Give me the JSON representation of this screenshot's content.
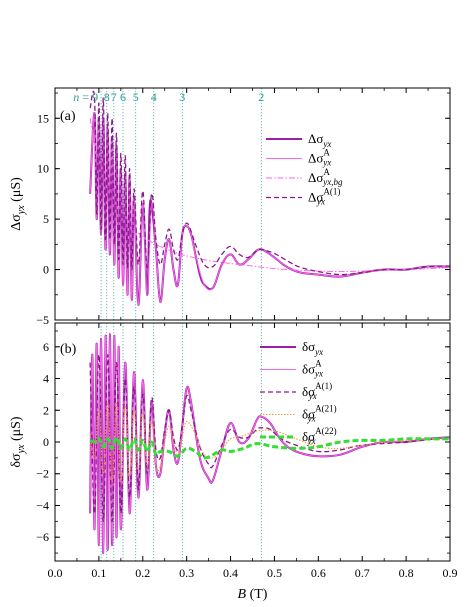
{
  "colors": {
    "main": "#9b1fa8",
    "pink": "#ff66ee",
    "dashed": "#8a1a8a",
    "orange": "#f29a3a",
    "green": "#33dd33",
    "guide": "#2f9a9a",
    "axis": "#000000"
  },
  "chart_data": [
    {
      "type": "line",
      "panel_label": "(a)",
      "ylabel": "Δσ_yx (μS)",
      "xlim": [
        0.0,
        0.9
      ],
      "ylim": [
        -5,
        18
      ],
      "yticks": [
        -5,
        0,
        5,
        10,
        15
      ],
      "landau_levels": {
        "labels": [
          "n = 9",
          "8",
          "7",
          "6",
          "5",
          "4",
          "3",
          "2"
        ],
        "B": [
          0.105,
          0.118,
          0.134,
          0.155,
          0.184,
          0.225,
          0.29,
          0.47
        ]
      },
      "legend": {
        "placement": "right-middle",
        "entries": [
          {
            "base": "Δσ",
            "sub": "yx",
            "sup": "",
            "style": "solid-thick",
            "color": "main"
          },
          {
            "base": "Δσ",
            "sub": "yx",
            "sup": "A",
            "style": "solid-thin",
            "color": "pink"
          },
          {
            "base": "Δσ",
            "sub": "yx,bg",
            "sup": "A",
            "style": "dash-dot",
            "color": "pink"
          },
          {
            "base": "Δσ",
            "sub": "yx",
            "sup": "A(1)",
            "style": "dashed",
            "color": "dashed"
          }
        ]
      },
      "series": [
        {
          "x": [
            0.08,
            0.09,
            0.095,
            0.1,
            0.105,
            0.11,
            0.115,
            0.12,
            0.125,
            0.13,
            0.135,
            0.14,
            0.145,
            0.15,
            0.155,
            0.16,
            0.165,
            0.17,
            0.175,
            0.18,
            0.19,
            0.2,
            0.21,
            0.215,
            0.22,
            0.23,
            0.24,
            0.25,
            0.26,
            0.27,
            0.28,
            0.29,
            0.3,
            0.31,
            0.32,
            0.33,
            0.34,
            0.36,
            0.38,
            0.4,
            0.42,
            0.44,
            0.46,
            0.47,
            0.48,
            0.5,
            0.52,
            0.54,
            0.56,
            0.6,
            0.65,
            0.7,
            0.75,
            0.8,
            0.85,
            0.9
          ],
          "y": [
            7.5,
            15.5,
            5.0,
            14.8,
            3.5,
            15.0,
            2.0,
            14.0,
            1.5,
            13.0,
            0.5,
            12.3,
            -0.8,
            10.0,
            -1.5,
            9.5,
            -2.5,
            9.0,
            -3.0,
            7.0,
            -3.5,
            6.5,
            -2.5,
            5.5,
            6.5,
            2.0,
            -3.2,
            1.0,
            3.0,
            0.0,
            -1.5,
            3.5,
            4.3,
            3.5,
            1.5,
            -0.5,
            -1.5,
            -1.8,
            0.5,
            1.5,
            0.5,
            1.0,
            1.9,
            2.0,
            1.8,
            1.2,
            0.5,
            0.0,
            -0.3,
            -0.5,
            -0.7,
            -0.3,
            0.0,
            0.0,
            0.3,
            0.3
          ]
        },
        {
          "x": [
            0.08,
            0.09,
            0.095,
            0.1,
            0.105,
            0.11,
            0.115,
            0.12,
            0.125,
            0.13,
            0.135,
            0.14,
            0.145,
            0.15,
            0.155,
            0.16,
            0.165,
            0.17,
            0.175,
            0.18,
            0.19,
            0.2,
            0.21,
            0.22,
            0.23,
            0.24,
            0.25,
            0.26,
            0.27,
            0.28,
            0.29,
            0.3,
            0.31,
            0.32,
            0.34,
            0.36,
            0.38,
            0.4,
            0.42,
            0.44,
            0.46,
            0.47,
            0.48,
            0.5,
            0.52,
            0.54,
            0.56,
            0.6,
            0.65,
            0.7,
            0.75,
            0.8,
            0.85,
            0.9
          ],
          "y": [
            7.5,
            15.5,
            5.0,
            14.8,
            3.5,
            15.0,
            2.0,
            14.0,
            1.5,
            13.0,
            0.5,
            12.3,
            -0.8,
            10.0,
            -1.5,
            9.5,
            -2.5,
            9.0,
            -3.0,
            7.0,
            -3.5,
            6.5,
            -2.5,
            6.5,
            2.0,
            -3.2,
            1.0,
            3.0,
            0.0,
            -1.5,
            3.5,
            4.3,
            3.5,
            1.5,
            -1.5,
            -1.8,
            0.5,
            1.5,
            0.5,
            1.0,
            1.9,
            2.0,
            1.8,
            1.2,
            0.5,
            0.0,
            -0.3,
            -0.5,
            -0.7,
            -0.3,
            0.0,
            0.0,
            0.3,
            0.3
          ]
        },
        {
          "x": [
            0.08,
            0.09,
            0.1,
            0.11,
            0.12,
            0.13,
            0.14,
            0.15,
            0.16,
            0.17,
            0.18,
            0.2,
            0.22,
            0.25,
            0.28,
            0.3,
            0.35,
            0.4,
            0.45,
            0.5,
            0.55,
            0.6,
            0.65,
            0.7,
            0.8,
            0.9
          ],
          "y": [
            15.0,
            12.5,
            11.0,
            9.5,
            8.5,
            7.5,
            6.5,
            5.8,
            5.2,
            4.6,
            4.0,
            3.3,
            2.7,
            2.1,
            1.6,
            1.35,
            0.9,
            0.6,
            0.35,
            0.1,
            -0.05,
            -0.15,
            -0.2,
            -0.15,
            0.0,
            0.2
          ]
        },
        {
          "x": [
            0.08,
            0.09,
            0.095,
            0.1,
            0.105,
            0.11,
            0.115,
            0.12,
            0.125,
            0.13,
            0.135,
            0.14,
            0.145,
            0.15,
            0.155,
            0.16,
            0.165,
            0.17,
            0.175,
            0.18,
            0.19,
            0.2,
            0.21,
            0.22,
            0.23,
            0.24,
            0.25,
            0.26,
            0.27,
            0.28,
            0.29,
            0.3,
            0.31,
            0.32,
            0.34,
            0.36,
            0.38,
            0.4,
            0.42,
            0.44,
            0.46,
            0.47,
            0.48,
            0.5,
            0.52,
            0.54,
            0.56,
            0.6,
            0.65,
            0.7,
            0.75,
            0.8,
            0.85,
            0.9
          ],
          "y": [
            16.0,
            17.0,
            5.5,
            16.5,
            4.0,
            17.0,
            3.0,
            15.5,
            3.0,
            15.0,
            2.5,
            13.5,
            1.0,
            11.5,
            0.5,
            11.3,
            0.2,
            10.0,
            0.0,
            8.0,
            0.5,
            7.8,
            0.2,
            7.5,
            3.0,
            0.5,
            2.5,
            4.0,
            2.0,
            1.0,
            3.5,
            4.6,
            3.8,
            2.5,
            0.5,
            0.3,
            1.5,
            2.3,
            1.5,
            1.2,
            1.9,
            2.0,
            1.9,
            1.6,
            1.1,
            0.6,
            0.2,
            -0.2,
            -0.5,
            -0.3,
            0.0,
            0.0,
            0.3,
            0.35
          ]
        }
      ]
    },
    {
      "type": "line",
      "panel_label": "(b)",
      "ylabel": "δσ_yx (μS)",
      "xlabel": "B (T)",
      "xlim": [
        0.0,
        0.9
      ],
      "ylim": [
        -7.5,
        7.5
      ],
      "yticks": [
        -6,
        -4,
        -2,
        0,
        2,
        4,
        6
      ],
      "xticks": [
        0.0,
        0.1,
        0.2,
        0.3,
        0.4,
        0.5,
        0.6,
        0.7,
        0.8,
        0.9
      ],
      "xtick_labels": [
        "0.0",
        "0.1",
        "0.2",
        "0.3",
        "0.4",
        "0.5",
        "0.6",
        "0.7",
        "0.8",
        "0.9"
      ],
      "legend": {
        "placement": "right-middle",
        "entries": [
          {
            "base": "δσ",
            "sub": "yx",
            "sup": "",
            "style": "solid-thick",
            "color": "main"
          },
          {
            "base": "δσ",
            "sub": "yx",
            "sup": "A",
            "style": "solid-thin",
            "color": "pink"
          },
          {
            "base": "δσ",
            "sub": "yx",
            "sup": "A(1)",
            "style": "dashed",
            "color": "dashed"
          },
          {
            "base": "δσ",
            "sub": "yx",
            "sup": "A(21)",
            "style": "dotted",
            "color": "orange"
          },
          {
            "base": "δσ",
            "sub": "yx",
            "sup": "A(22)",
            "style": "dashed-thick",
            "color": "green"
          }
        ]
      },
      "series": [
        {
          "x": [
            0.08,
            0.085,
            0.09,
            0.095,
            0.1,
            0.105,
            0.11,
            0.115,
            0.12,
            0.125,
            0.13,
            0.135,
            0.14,
            0.145,
            0.15,
            0.16,
            0.17,
            0.18,
            0.19,
            0.2,
            0.21,
            0.22,
            0.23,
            0.24,
            0.25,
            0.26,
            0.27,
            0.28,
            0.29,
            0.3,
            0.31,
            0.33,
            0.35,
            0.36,
            0.38,
            0.4,
            0.42,
            0.44,
            0.46,
            0.47,
            0.49,
            0.51,
            0.53,
            0.56,
            0.6,
            0.65,
            0.7,
            0.75,
            0.8,
            0.85,
            0.9
          ],
          "y": [
            -4.5,
            5.5,
            -5.5,
            6.2,
            -6.5,
            6.5,
            -7.0,
            6.7,
            -6.8,
            6.8,
            -6.5,
            6.7,
            -6.0,
            6.0,
            -5.5,
            5.0,
            -4.5,
            4.4,
            -3.5,
            3.9,
            -3.0,
            2.5,
            -1.5,
            -2.0,
            0.5,
            2.0,
            -0.5,
            -1.3,
            1.0,
            3.4,
            2.5,
            -1.0,
            -2.3,
            -2.4,
            -0.5,
            1.2,
            0.0,
            0.2,
            1.4,
            1.6,
            1.2,
            0.3,
            -0.3,
            -0.7,
            -0.9,
            -0.8,
            -0.3,
            0.0,
            0.0,
            0.2,
            0.3
          ]
        },
        {
          "x": [
            0.08,
            0.085,
            0.09,
            0.095,
            0.1,
            0.105,
            0.11,
            0.115,
            0.12,
            0.125,
            0.13,
            0.135,
            0.14,
            0.145,
            0.15,
            0.16,
            0.17,
            0.18,
            0.19,
            0.2,
            0.21,
            0.22,
            0.23,
            0.24,
            0.25,
            0.26,
            0.27,
            0.28,
            0.29,
            0.3,
            0.31,
            0.33,
            0.35,
            0.36,
            0.38,
            0.4,
            0.42,
            0.44,
            0.46,
            0.47,
            0.49,
            0.51,
            0.53,
            0.56,
            0.6,
            0.65,
            0.7,
            0.75,
            0.8,
            0.85,
            0.9
          ],
          "y": [
            -4.5,
            5.5,
            -5.5,
            6.2,
            -6.5,
            6.5,
            -7.0,
            6.7,
            -6.8,
            6.8,
            -6.5,
            6.7,
            -6.0,
            6.0,
            -5.5,
            5.0,
            -4.5,
            4.4,
            -3.5,
            3.9,
            -3.0,
            2.5,
            -1.5,
            -2.0,
            0.5,
            2.0,
            -0.5,
            -1.3,
            1.0,
            3.4,
            2.5,
            -1.0,
            -2.3,
            -2.4,
            -0.5,
            1.2,
            0.0,
            0.2,
            1.4,
            1.6,
            1.2,
            0.3,
            -0.3,
            -0.7,
            -0.9,
            -0.8,
            -0.3,
            0.0,
            0.0,
            0.2,
            0.3
          ]
        },
        {
          "x": [
            0.08,
            0.09,
            0.1,
            0.11,
            0.12,
            0.13,
            0.14,
            0.15,
            0.16,
            0.17,
            0.18,
            0.19,
            0.2,
            0.21,
            0.22,
            0.23,
            0.24,
            0.25,
            0.26,
            0.27,
            0.28,
            0.29,
            0.3,
            0.31,
            0.33,
            0.35,
            0.36,
            0.38,
            0.4,
            0.42,
            0.44,
            0.46,
            0.47,
            0.49,
            0.51,
            0.53,
            0.56,
            0.6,
            0.65,
            0.7,
            0.8,
            0.9
          ],
          "y": [
            5.0,
            -4.5,
            5.5,
            -5.0,
            5.5,
            -5.0,
            5.0,
            -4.5,
            4.0,
            -3.5,
            3.5,
            -3.0,
            3.0,
            -2.0,
            2.8,
            -0.5,
            -1.0,
            0.8,
            2.0,
            0.3,
            -0.5,
            1.0,
            2.9,
            2.0,
            -0.3,
            -1.4,
            -1.5,
            -0.2,
            0.8,
            0.3,
            0.3,
            0.8,
            0.9,
            0.8,
            0.3,
            0.0,
            -0.3,
            -0.6,
            -0.5,
            -0.2,
            0.0,
            0.3
          ]
        },
        {
          "x": [
            0.08,
            0.09,
            0.1,
            0.11,
            0.12,
            0.13,
            0.14,
            0.15,
            0.16,
            0.17,
            0.18,
            0.19,
            0.2,
            0.21,
            0.22,
            0.23,
            0.24,
            0.25,
            0.26,
            0.27,
            0.28,
            0.29,
            0.3,
            0.32,
            0.34,
            0.36,
            0.38,
            0.4,
            0.43,
            0.46,
            0.5,
            0.55,
            0.6,
            0.65,
            0.7,
            0.8,
            0.9
          ],
          "y": [
            0.5,
            -1.0,
            2.0,
            -2.0,
            2.5,
            -2.5,
            2.5,
            -2.5,
            2.3,
            -2.2,
            2.0,
            -1.8,
            1.8,
            -1.5,
            1.3,
            -1.6,
            -1.5,
            0.0,
            1.0,
            0.0,
            -0.8,
            0.3,
            1.3,
            0.5,
            -0.8,
            -1.0,
            -0.5,
            0.2,
            0.4,
            0.7,
            0.7,
            0.2,
            -0.3,
            -0.4,
            -0.2,
            0.1,
            0.2
          ]
        },
        {
          "x": [
            0.08,
            0.09,
            0.1,
            0.11,
            0.12,
            0.13,
            0.14,
            0.15,
            0.16,
            0.17,
            0.18,
            0.19,
            0.2,
            0.21,
            0.22,
            0.23,
            0.24,
            0.26,
            0.28,
            0.3,
            0.32,
            0.34,
            0.36,
            0.38,
            0.4,
            0.43,
            0.46,
            0.5,
            0.55,
            0.6,
            0.65,
            0.7,
            0.75,
            0.8,
            0.85,
            0.9
          ],
          "y": [
            0.1,
            0.0,
            0.2,
            -0.3,
            0.2,
            -0.4,
            0.3,
            -0.4,
            0.2,
            -0.5,
            0.2,
            -0.5,
            0.1,
            -0.6,
            0.0,
            -0.8,
            -0.6,
            -0.6,
            -0.9,
            -0.4,
            -0.6,
            -1.0,
            -0.8,
            -0.5,
            -0.6,
            -0.4,
            -0.1,
            -0.3,
            -0.4,
            -0.3,
            0.0,
            0.1,
            0.1,
            0.2,
            0.2,
            0.2
          ]
        }
      ]
    }
  ]
}
